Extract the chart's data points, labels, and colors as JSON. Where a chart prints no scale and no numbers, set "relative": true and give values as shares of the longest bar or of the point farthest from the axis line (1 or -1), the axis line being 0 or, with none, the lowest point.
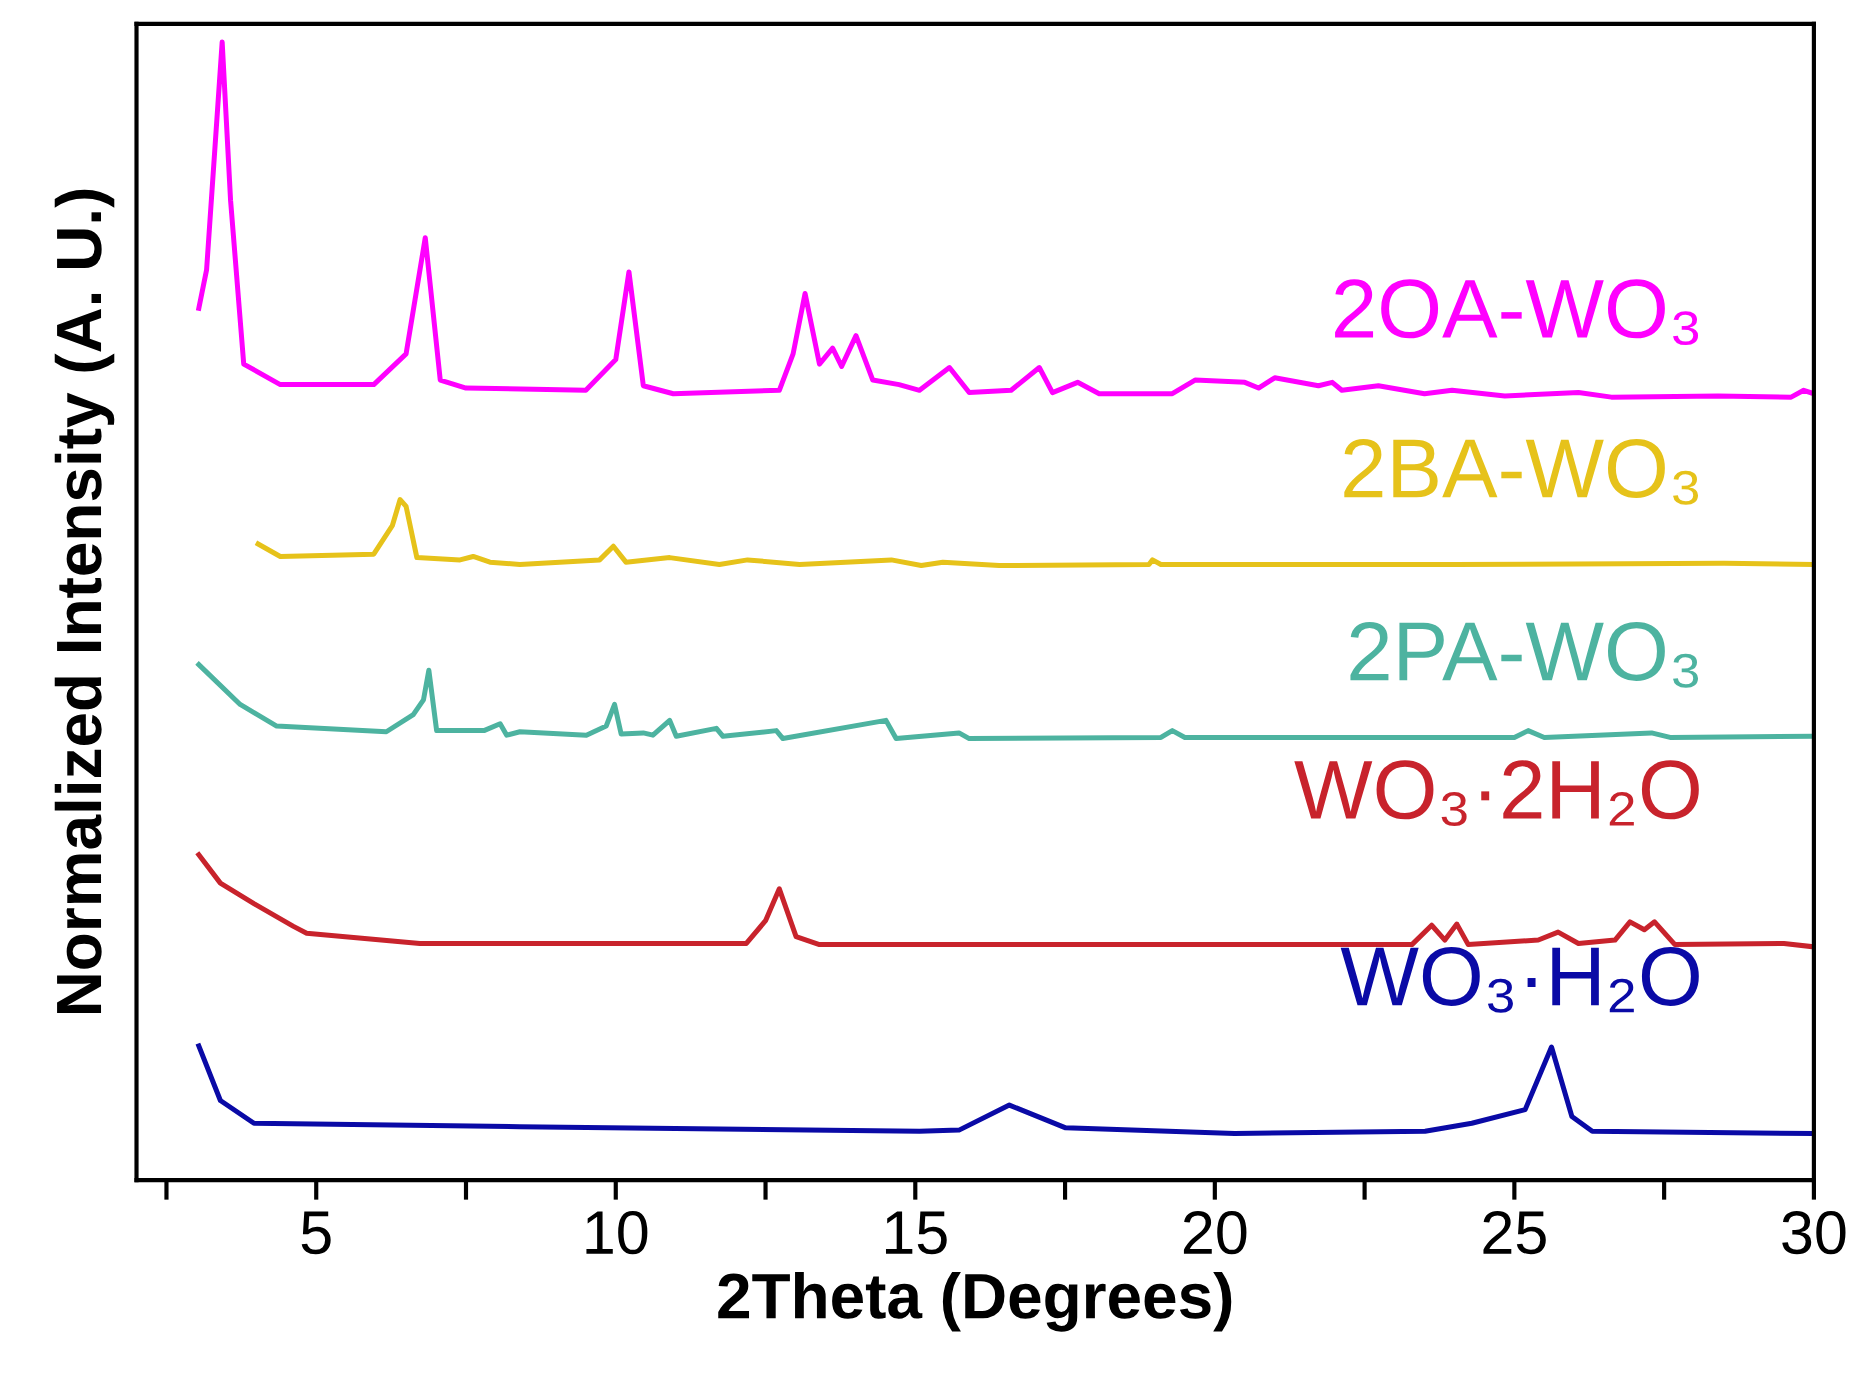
{
  "chart_data": {
    "type": "line",
    "relative": true,
    "xlabel": "2Theta (Degrees)",
    "ylabel": "Normalized Intensity (A. U.)",
    "xlim": [
      2,
      30
    ],
    "xticks": [
      {
        "value": 2.5,
        "label": null
      },
      5,
      {
        "value": 7.5,
        "label": null
      },
      10,
      {
        "value": 12.5,
        "label": null
      },
      15,
      {
        "value": 17.5,
        "label": null
      },
      20,
      {
        "value": 22.5,
        "label": null
      },
      25,
      {
        "value": 27.5,
        "label": null
      },
      30
    ],
    "tick_labels": "x",
    "grid": false,
    "legend": false,
    "marker": "none",
    "line_style": "solid",
    "series": [
      {
        "name": "2OA-WO₃",
        "color": "#ff00ff",
        "x": [
          3.04,
          3.17,
          3.43,
          3.57,
          3.79,
          4.4,
          5.96,
          6.5,
          6.82,
          7.07,
          7.5,
          9.5,
          10.0,
          10.22,
          10.46,
          10.96,
          12.73,
          12.96,
          13.16,
          13.4,
          13.62,
          13.77,
          14.01,
          14.29,
          14.73,
          15.07,
          15.57,
          15.9,
          16.6,
          17.07,
          17.29,
          17.71,
          18.07,
          19.29,
          19.67,
          20.5,
          20.73,
          21.0,
          21.73,
          21.96,
          22.12,
          22.73,
          23.5,
          23.96,
          24.84,
          26.07,
          26.62,
          28.4,
          29.62,
          29.83,
          30
        ],
        "values": [
          0.766,
          0.8,
          1,
          0.861,
          0.717,
          0.699,
          0.699,
          0.726,
          0.828,
          0.703,
          0.696,
          0.694,
          0.721,
          0.798,
          0.698,
          0.691,
          0.694,
          0.726,
          0.779,
          0.717,
          0.731,
          0.715,
          0.742,
          0.703,
          0.699,
          0.694,
          0.714,
          0.692,
          0.694,
          0.714,
          0.692,
          0.701,
          0.691,
          0.691,
          0.703,
          0.701,
          0.696,
          0.705,
          0.698,
          0.701,
          0.694,
          0.698,
          0.691,
          0.694,
          0.689,
          0.692,
          0.688,
          0.689,
          0.688,
          0.694,
          0.691
        ]
      },
      {
        "name": "2BA-WO₃",
        "color": "#e6c21a",
        "x": [
          4.03,
          4.4,
          5.96,
          6.27,
          6.4,
          6.5,
          6.68,
          7.4,
          7.62,
          7.9,
          8.4,
          9.73,
          9.96,
          10.17,
          10.9,
          11.73,
          12.2,
          13.07,
          14.6,
          15.1,
          15.46,
          16.4,
          18.9,
          18.96,
          19.1,
          24.0,
          28.5,
          30
        ],
        "values": [
          0.559,
          0.548,
          0.55,
          0.575,
          0.598,
          0.592,
          0.547,
          0.545,
          0.548,
          0.543,
          0.541,
          0.545,
          0.557,
          0.543,
          0.547,
          0.541,
          0.545,
          0.541,
          0.545,
          0.54,
          0.543,
          0.54,
          0.541,
          0.545,
          0.541,
          0.541,
          0.542,
          0.541
        ]
      },
      {
        "name": "2PA-WO₃",
        "color": "#4db3a0",
        "x": [
          3.04,
          3.73,
          4.34,
          6.17,
          6.62,
          6.79,
          6.88,
          7.01,
          7.8,
          8.07,
          8.18,
          8.4,
          9.51,
          9.84,
          9.98,
          10.09,
          10.46,
          10.62,
          10.9,
          11.01,
          11.68,
          11.79,
          12.68,
          12.79,
          14.51,
          14.68,
          15.73,
          15.9,
          19.1,
          19.29,
          19.5,
          25.0,
          25.23,
          25.5,
          27.29,
          27.6,
          30
        ],
        "values": [
          0.453,
          0.418,
          0.399,
          0.394,
          0.409,
          0.422,
          0.448,
          0.395,
          0.395,
          0.401,
          0.391,
          0.394,
          0.391,
          0.399,
          0.418,
          0.392,
          0.393,
          0.391,
          0.404,
          0.39,
          0.397,
          0.39,
          0.395,
          0.388,
          0.404,
          0.388,
          0.393,
          0.388,
          0.389,
          0.395,
          0.389,
          0.389,
          0.395,
          0.389,
          0.393,
          0.389,
          0.39
        ]
      },
      {
        "name": "WO₃·2H₂O",
        "color": "#c8232c",
        "x": [
          3.04,
          3.4,
          3.96,
          4.62,
          4.84,
          6.73,
          12.18,
          12.5,
          12.73,
          13.01,
          13.4,
          23.29,
          23.62,
          23.84,
          24.04,
          24.23,
          25.4,
          25.73,
          26.07,
          26.68,
          26.93,
          27.17,
          27.34,
          27.68,
          29.5,
          30
        ],
        "values": [
          0.286,
          0.261,
          0.243,
          0.223,
          0.217,
          0.208,
          0.208,
          0.228,
          0.256,
          0.214,
          0.207,
          0.207,
          0.224,
          0.211,
          0.225,
          0.207,
          0.211,
          0.218,
          0.208,
          0.211,
          0.227,
          0.22,
          0.227,
          0.207,
          0.208,
          0.205
        ]
      },
      {
        "name": "WO₃·H₂O",
        "color": "#0a0aa6",
        "x": [
          3.04,
          3.4,
          3.96,
          8.4,
          15.07,
          15.73,
          16.57,
          17.51,
          20.33,
          23.51,
          24.29,
          25.18,
          25.62,
          25.96,
          26.3,
          30
        ],
        "values": [
          0.118,
          0.07,
          0.05,
          0.047,
          0.043,
          0.044,
          0.066,
          0.046,
          0.041,
          0.043,
          0.05,
          0.062,
          0.117,
          0.056,
          0.043,
          0.041
        ]
      }
    ]
  }
}
